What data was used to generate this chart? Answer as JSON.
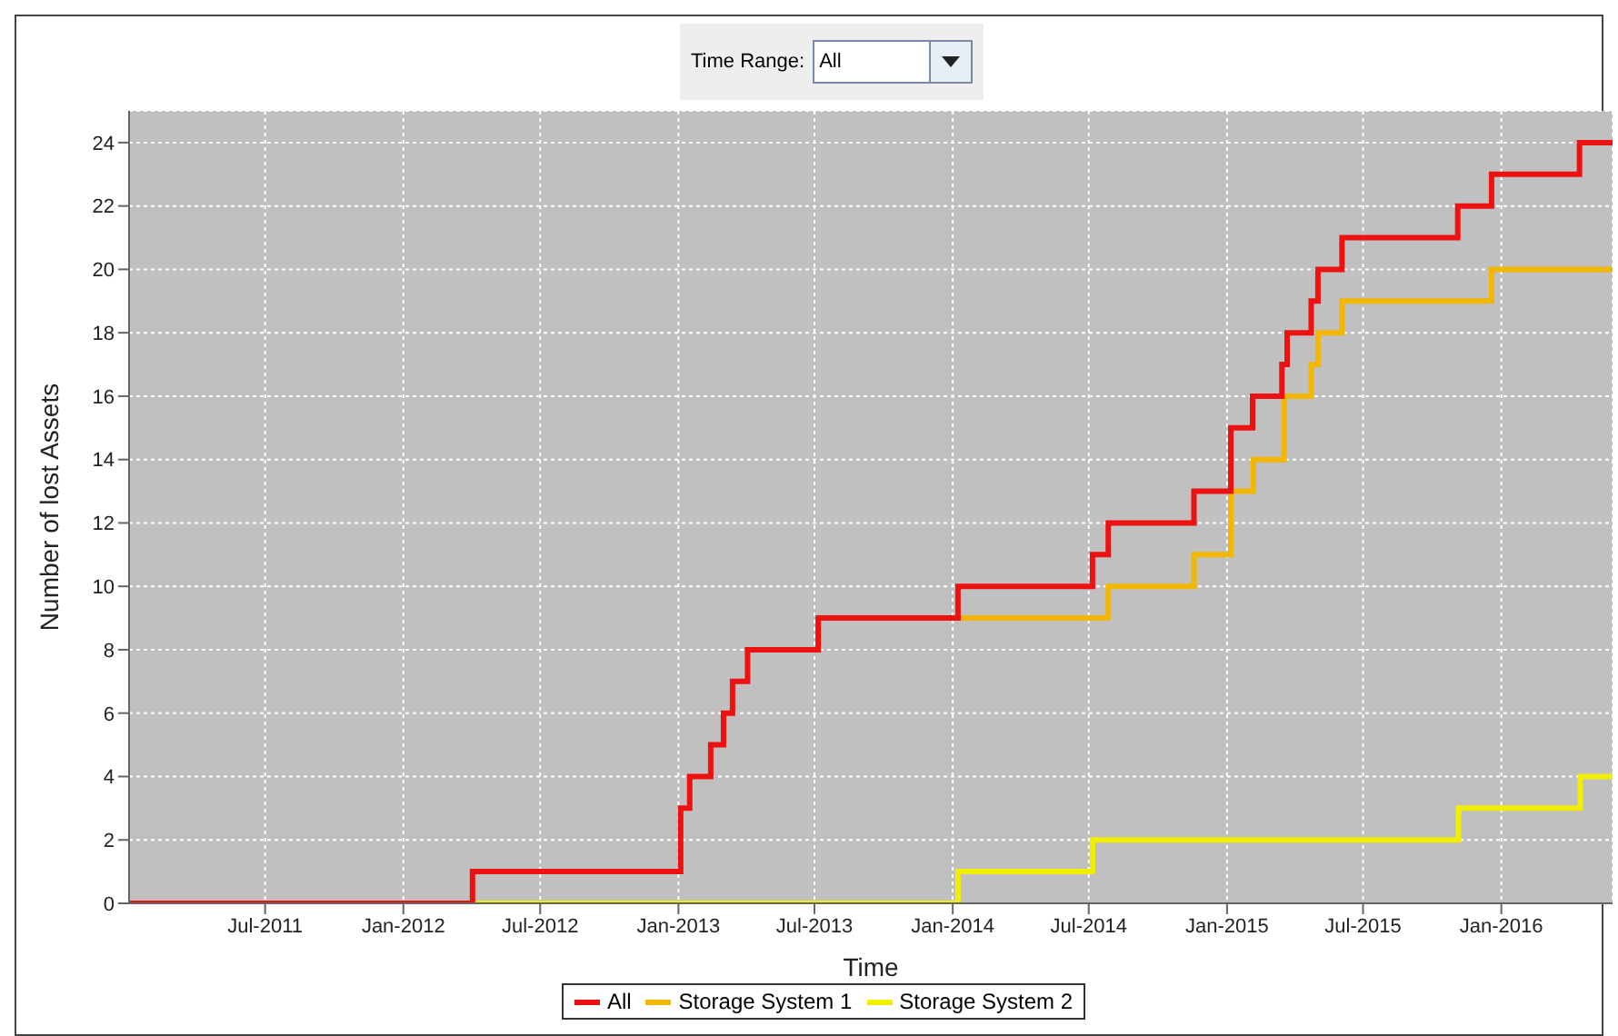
{
  "chart_data": {
    "type": "step",
    "xlabel": "Time",
    "ylabel": "Number of lost Assets",
    "annotations": [
      "Time Range:",
      "All"
    ],
    "xlim": [
      "2011-01-01",
      "2016-05-28"
    ],
    "xticks": [
      {
        "value": "2011-07-01",
        "label": "Jul-2011"
      },
      {
        "value": "2012-01-01",
        "label": "Jan-2012"
      },
      {
        "value": "2012-07-01",
        "label": "Jul-2012"
      },
      {
        "value": "2013-01-01",
        "label": "Jan-2013"
      },
      {
        "value": "2013-07-01",
        "label": "Jul-2013"
      },
      {
        "value": "2014-01-01",
        "label": "Jan-2014"
      },
      {
        "value": "2014-07-01",
        "label": "Jul-2014"
      },
      {
        "value": "2015-01-01",
        "label": "Jan-2015"
      },
      {
        "value": "2015-07-01",
        "label": "Jul-2015"
      },
      {
        "value": "2016-01-01",
        "label": "Jan-2016"
      }
    ],
    "ylim": [
      0,
      25
    ],
    "yticks": [
      0,
      2,
      4,
      6,
      8,
      10,
      12,
      14,
      16,
      18,
      20,
      22,
      24
    ],
    "grid": true,
    "legend": "bottom",
    "series": [
      {
        "name": "Storage System 2",
        "color": "#f2ee00",
        "x": [
          "2012-04-02",
          "2014-01-08",
          "2014-07-06",
          "2015-11-05",
          "2016-04-15",
          "2016-05-28"
        ],
        "values": [
          0,
          1,
          2,
          3,
          4,
          4
        ]
      },
      {
        "name": "Storage System 1",
        "color": "#f2b700",
        "x": [
          "2014-01-08",
          "2014-07-27",
          "2014-11-18",
          "2015-01-06",
          "2015-02-05",
          "2015-03-18",
          "2015-04-23",
          "2015-05-02",
          "2015-06-03",
          "2015-12-19",
          "2016-05-28"
        ],
        "values": [
          9,
          10,
          11,
          13,
          14,
          16,
          17,
          18,
          19,
          20,
          20
        ]
      },
      {
        "name": "All",
        "color": "#ee1111",
        "x": [
          "2011-01-01",
          "2012-04-02",
          "2013-01-04",
          "2013-01-16",
          "2013-02-13",
          "2013-03-02",
          "2013-03-14",
          "2013-04-03",
          "2013-07-06",
          "2014-01-08",
          "2014-07-06",
          "2014-07-27",
          "2014-11-18",
          "2015-01-06",
          "2015-02-04",
          "2015-03-15",
          "2015-03-22",
          "2015-04-23",
          "2015-05-02",
          "2015-06-03",
          "2015-11-04",
          "2015-12-19",
          "2016-04-14",
          "2016-05-28"
        ],
        "values": [
          0,
          1,
          3,
          4,
          5,
          6,
          7,
          8,
          9,
          10,
          11,
          12,
          13,
          15,
          16,
          17,
          18,
          19,
          20,
          21,
          22,
          23,
          24,
          24
        ]
      }
    ]
  }
}
